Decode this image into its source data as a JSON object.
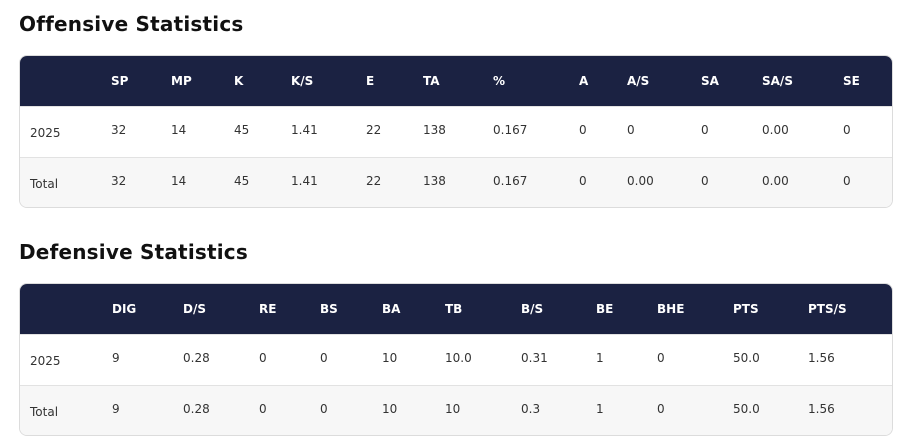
{
  "offensive": {
    "title": "Offensive Statistics",
    "columns": [
      "SP",
      "MP",
      "K",
      "K/S",
      "E",
      "TA",
      "%",
      "A",
      "A/S",
      "SA",
      "SA/S",
      "SE"
    ],
    "rows": [
      {
        "label": "2025",
        "cells": [
          "32",
          "14",
          "45",
          "1.41",
          "22",
          "138",
          "0.167",
          "0",
          "0",
          "0",
          "0.00",
          "0"
        ]
      },
      {
        "label": "Total",
        "cells": [
          "32",
          "14",
          "45",
          "1.41",
          "22",
          "138",
          "0.167",
          "0",
          "0.00",
          "0",
          "0.00",
          "0"
        ]
      }
    ]
  },
  "defensive": {
    "title": "Defensive Statistics",
    "columns": [
      "DIG",
      "D/S",
      "RE",
      "BS",
      "BA",
      "TB",
      "B/S",
      "BE",
      "BHE",
      "PTS",
      "PTS/S"
    ],
    "rows": [
      {
        "label": "2025",
        "cells": [
          "9",
          "0.28",
          "0",
          "0",
          "10",
          "10.0",
          "0.31",
          "1",
          "0",
          "50.0",
          "1.56"
        ]
      },
      {
        "label": "Total",
        "cells": [
          "9",
          "0.28",
          "0",
          "0",
          "10",
          "10",
          "0.3",
          "1",
          "0",
          "50.0",
          "1.56"
        ]
      }
    ]
  }
}
